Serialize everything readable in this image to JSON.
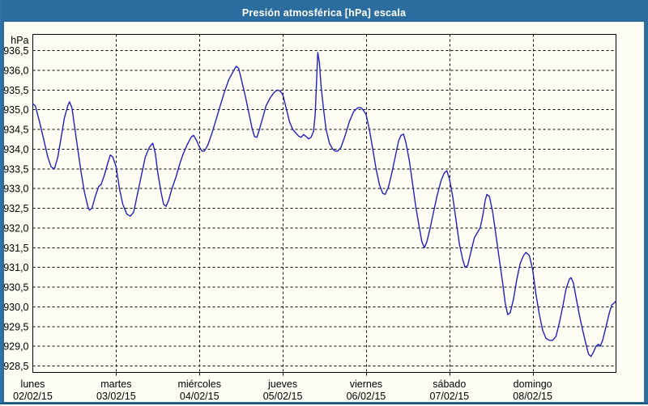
{
  "window": {
    "title": "Presión atmosférica [hPa] escala"
  },
  "colors": {
    "frame": "#2b6d9f",
    "titlebar_bg": "#2b6d9f",
    "titlebar_text": "#ffffff",
    "content_bg": "#fdfdf3",
    "grid": "#000000",
    "axis": "#000000",
    "series_line": "#2121bd",
    "label_text": "#000000"
  },
  "chart_data": {
    "type": "line",
    "title": "Presión atmosférica [hPa] escala",
    "ylabel": "hPa",
    "grid": "dashed",
    "legend": "none",
    "y_axis": {
      "min": 928.5,
      "max": 936.5,
      "step": 0.5,
      "tick_labels": [
        "936,5",
        "936,0",
        "935,5",
        "935,0",
        "934,5",
        "934,0",
        "933,5",
        "933,0",
        "932,5",
        "932,0",
        "931,5",
        "931,0",
        "930,5",
        "930,0",
        "929,5",
        "929,0",
        "928,5"
      ]
    },
    "x_axis": {
      "span_days": 7,
      "days": [
        {
          "name": "lunes",
          "date": "02/02/15"
        },
        {
          "name": "martes",
          "date": "03/02/15"
        },
        {
          "name": "miércoles",
          "date": "04/02/15"
        },
        {
          "name": "jueves",
          "date": "05/02/15"
        },
        {
          "name": "viernes",
          "date": "06/02/15"
        },
        {
          "name": "sábado",
          "date": "07/02/15"
        },
        {
          "name": "domingo",
          "date": "08/02/15"
        }
      ]
    },
    "series": [
      {
        "name": "Presión atmosférica",
        "color": "#2121bd",
        "points": [
          [
            0,
            935.15
          ],
          [
            0.03,
            935.1
          ],
          [
            0.08,
            934.7
          ],
          [
            0.13,
            934.25
          ],
          [
            0.18,
            933.8
          ],
          [
            0.22,
            933.55
          ],
          [
            0.26,
            933.5
          ],
          [
            0.3,
            933.8
          ],
          [
            0.34,
            934.3
          ],
          [
            0.38,
            934.8
          ],
          [
            0.42,
            935.1
          ],
          [
            0.44,
            935.2
          ],
          [
            0.47,
            935.05
          ],
          [
            0.5,
            934.6
          ],
          [
            0.54,
            934.0
          ],
          [
            0.58,
            933.4
          ],
          [
            0.62,
            932.9
          ],
          [
            0.66,
            932.55
          ],
          [
            0.68,
            932.45
          ],
          [
            0.71,
            932.5
          ],
          [
            0.75,
            932.8
          ],
          [
            0.79,
            933.05
          ],
          [
            0.82,
            933.1
          ],
          [
            0.86,
            933.35
          ],
          [
            0.9,
            933.65
          ],
          [
            0.93,
            933.85
          ],
          [
            0.96,
            933.8
          ],
          [
            1.0,
            933.55
          ],
          [
            1.04,
            933.0
          ],
          [
            1.08,
            932.6
          ],
          [
            1.13,
            932.35
          ],
          [
            1.17,
            932.3
          ],
          [
            1.21,
            932.4
          ],
          [
            1.25,
            932.8
          ],
          [
            1.3,
            933.3
          ],
          [
            1.35,
            933.8
          ],
          [
            1.4,
            934.05
          ],
          [
            1.44,
            934.15
          ],
          [
            1.47,
            933.9
          ],
          [
            1.5,
            933.4
          ],
          [
            1.54,
            932.9
          ],
          [
            1.57,
            932.6
          ],
          [
            1.6,
            932.55
          ],
          [
            1.63,
            932.7
          ],
          [
            1.67,
            933.0
          ],
          [
            1.72,
            933.3
          ],
          [
            1.76,
            933.6
          ],
          [
            1.8,
            933.85
          ],
          [
            1.85,
            934.1
          ],
          [
            1.9,
            934.3
          ],
          [
            1.93,
            934.35
          ],
          [
            1.97,
            934.2
          ],
          [
            2.0,
            934.05
          ],
          [
            2.03,
            933.95
          ],
          [
            2.06,
            933.95
          ],
          [
            2.1,
            934.1
          ],
          [
            2.15,
            934.4
          ],
          [
            2.2,
            934.75
          ],
          [
            2.25,
            935.1
          ],
          [
            2.3,
            935.45
          ],
          [
            2.35,
            935.75
          ],
          [
            2.4,
            935.95
          ],
          [
            2.44,
            936.1
          ],
          [
            2.47,
            936.05
          ],
          [
            2.5,
            935.8
          ],
          [
            2.55,
            935.35
          ],
          [
            2.6,
            934.85
          ],
          [
            2.63,
            934.55
          ],
          [
            2.66,
            934.32
          ],
          [
            2.69,
            934.3
          ],
          [
            2.72,
            934.5
          ],
          [
            2.76,
            934.8
          ],
          [
            2.8,
            935.1
          ],
          [
            2.85,
            935.3
          ],
          [
            2.9,
            935.45
          ],
          [
            2.94,
            935.5
          ],
          [
            2.97,
            935.47
          ],
          [
            3.0,
            935.38
          ],
          [
            3.04,
            935.05
          ],
          [
            3.08,
            934.7
          ],
          [
            3.12,
            934.5
          ],
          [
            3.16,
            934.4
          ],
          [
            3.19,
            934.33
          ],
          [
            3.22,
            934.3
          ],
          [
            3.25,
            934.37
          ],
          [
            3.28,
            934.32
          ],
          [
            3.31,
            934.26
          ],
          [
            3.34,
            934.3
          ],
          [
            3.37,
            934.45
          ],
          [
            3.39,
            934.9
          ],
          [
            3.41,
            935.9
          ],
          [
            3.42,
            936.45
          ],
          [
            3.44,
            936.2
          ],
          [
            3.46,
            935.6
          ],
          [
            3.49,
            935.0
          ],
          [
            3.52,
            934.5
          ],
          [
            3.56,
            934.15
          ],
          [
            3.6,
            934.0
          ],
          [
            3.63,
            933.95
          ],
          [
            3.66,
            933.95
          ],
          [
            3.7,
            934.05
          ],
          [
            3.75,
            934.35
          ],
          [
            3.8,
            934.7
          ],
          [
            3.85,
            934.95
          ],
          [
            3.9,
            935.05
          ],
          [
            3.94,
            935.05
          ],
          [
            3.97,
            934.98
          ],
          [
            4.0,
            934.88
          ],
          [
            4.04,
            934.5
          ],
          [
            4.08,
            934.0
          ],
          [
            4.12,
            933.5
          ],
          [
            4.16,
            933.1
          ],
          [
            4.2,
            932.88
          ],
          [
            4.23,
            932.85
          ],
          [
            4.27,
            933.05
          ],
          [
            4.31,
            933.4
          ],
          [
            4.35,
            933.8
          ],
          [
            4.39,
            934.2
          ],
          [
            4.42,
            934.35
          ],
          [
            4.45,
            934.38
          ],
          [
            4.48,
            934.15
          ],
          [
            4.52,
            933.7
          ],
          [
            4.56,
            933.1
          ],
          [
            4.6,
            932.5
          ],
          [
            4.64,
            932.0
          ],
          [
            4.67,
            931.65
          ],
          [
            4.7,
            931.5
          ],
          [
            4.73,
            931.65
          ],
          [
            4.77,
            932.0
          ],
          [
            4.81,
            932.4
          ],
          [
            4.85,
            932.8
          ],
          [
            4.9,
            933.2
          ],
          [
            4.94,
            933.4
          ],
          [
            4.97,
            933.45
          ],
          [
            5.0,
            933.25
          ],
          [
            5.04,
            932.8
          ],
          [
            5.08,
            932.2
          ],
          [
            5.12,
            931.6
          ],
          [
            5.16,
            931.2
          ],
          [
            5.19,
            931.0
          ],
          [
            5.22,
            931.05
          ],
          [
            5.26,
            931.4
          ],
          [
            5.3,
            931.75
          ],
          [
            5.34,
            931.9
          ],
          [
            5.37,
            932.0
          ],
          [
            5.4,
            932.3
          ],
          [
            5.43,
            932.7
          ],
          [
            5.45,
            932.85
          ],
          [
            5.48,
            932.8
          ],
          [
            5.52,
            932.4
          ],
          [
            5.56,
            931.8
          ],
          [
            5.6,
            931.2
          ],
          [
            5.64,
            930.6
          ],
          [
            5.67,
            930.1
          ],
          [
            5.7,
            929.8
          ],
          [
            5.73,
            929.85
          ],
          [
            5.77,
            930.2
          ],
          [
            5.81,
            930.7
          ],
          [
            5.85,
            931.1
          ],
          [
            5.89,
            931.3
          ],
          [
            5.92,
            931.38
          ],
          [
            5.96,
            931.3
          ],
          [
            6.0,
            930.95
          ],
          [
            6.04,
            930.3
          ],
          [
            6.08,
            929.8
          ],
          [
            6.12,
            929.4
          ],
          [
            6.16,
            929.2
          ],
          [
            6.2,
            929.15
          ],
          [
            6.24,
            929.15
          ],
          [
            6.28,
            929.25
          ],
          [
            6.32,
            929.6
          ],
          [
            6.36,
            930.0
          ],
          [
            6.4,
            930.45
          ],
          [
            6.44,
            930.7
          ],
          [
            6.46,
            930.74
          ],
          [
            6.49,
            930.6
          ],
          [
            6.52,
            930.25
          ],
          [
            6.56,
            929.8
          ],
          [
            6.6,
            929.4
          ],
          [
            6.64,
            929.05
          ],
          [
            6.67,
            928.8
          ],
          [
            6.7,
            928.74
          ],
          [
            6.73,
            928.85
          ],
          [
            6.76,
            929.0
          ],
          [
            6.79,
            929.05
          ],
          [
            6.81,
            929.0
          ],
          [
            6.84,
            929.15
          ],
          [
            6.88,
            929.5
          ],
          [
            6.92,
            929.85
          ],
          [
            6.95,
            930.05
          ],
          [
            6.98,
            930.1
          ],
          [
            7.0,
            930.15
          ]
        ]
      }
    ]
  }
}
